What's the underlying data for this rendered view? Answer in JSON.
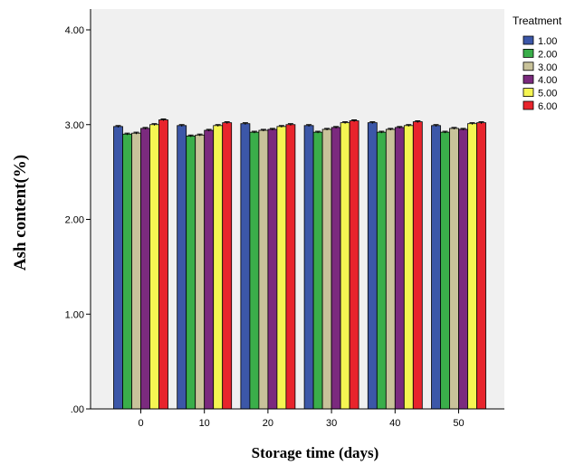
{
  "chart_data": {
    "type": "bar",
    "categories": [
      "0",
      "10",
      "20",
      "30",
      "40",
      "50"
    ],
    "series": [
      {
        "name": "1.00",
        "color": "#3c57a8",
        "values": [
          2.98,
          2.99,
          3.01,
          2.99,
          3.02,
          2.99
        ]
      },
      {
        "name": "2.00",
        "color": "#3aae4a",
        "values": [
          2.9,
          2.88,
          2.92,
          2.92,
          2.92,
          2.92
        ]
      },
      {
        "name": "3.00",
        "color": "#c8c29a",
        "values": [
          2.91,
          2.89,
          2.94,
          2.95,
          2.95,
          2.96
        ]
      },
      {
        "name": "4.00",
        "color": "#7b2a7e",
        "values": [
          2.96,
          2.94,
          2.95,
          2.97,
          2.97,
          2.95
        ]
      },
      {
        "name": "5.00",
        "color": "#f5f552",
        "values": [
          3.0,
          2.99,
          2.98,
          3.02,
          2.99,
          3.01
        ]
      },
      {
        "name": "6.00",
        "color": "#e8242c",
        "values": [
          3.05,
          3.02,
          3.0,
          3.04,
          3.03,
          3.02
        ]
      }
    ],
    "errors": 0.01,
    "ylim": [
      0,
      4
    ],
    "yticks": [
      0,
      1,
      2,
      3,
      4
    ],
    "ytick_labels": [
      ".00",
      "1.00",
      "2.00",
      "3.00",
      "4.00"
    ],
    "xlabel": "Storage time (days)",
    "ylabel": "Ash content(%)",
    "legend_title": "Treatment",
    "legend_position": "right",
    "plot_background": "#f0f0f0",
    "grid": false
  }
}
